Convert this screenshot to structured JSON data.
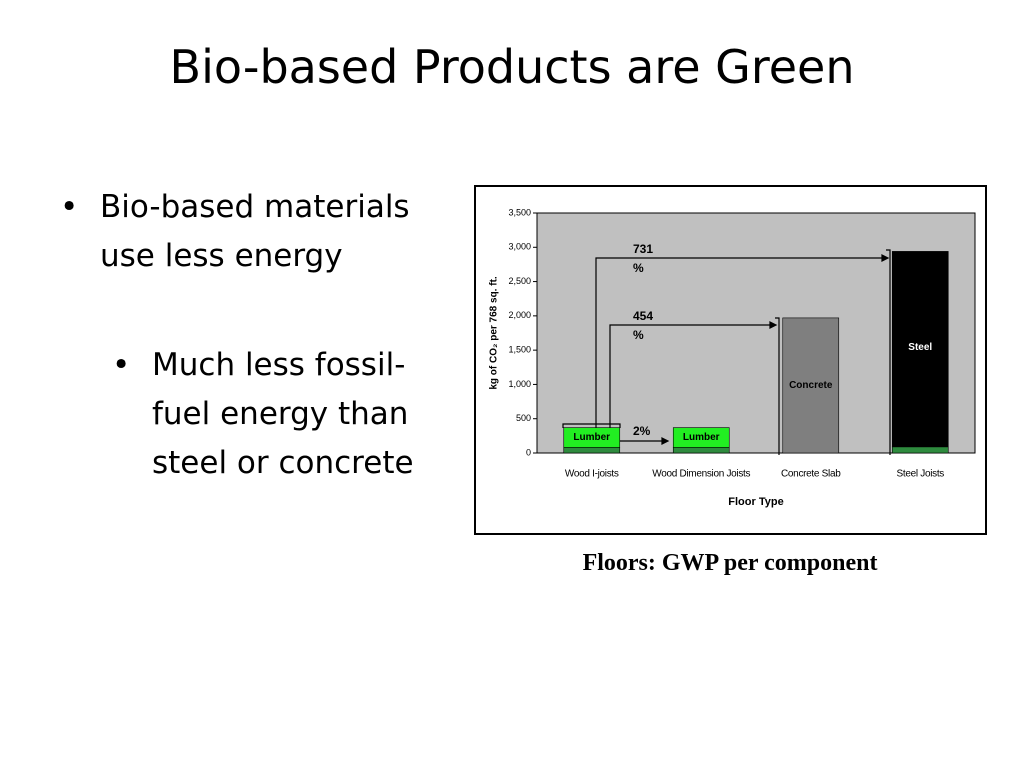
{
  "title": "Bio-based Products are Green",
  "bullets": [
    {
      "text": "Bio-based materials use less energy",
      "level": 1
    },
    {
      "text": "Much less fossil-fuel energy than steel or concrete",
      "level": 2
    }
  ],
  "caption": "Floors: GWP per component",
  "chart_data": {
    "type": "stacked-bar",
    "x_label": "Floor Type",
    "y_label": "kg of CO₂ per 768 sq. ft.",
    "categories": [
      "Wood I-joists",
      "Wood Dimension Joists",
      "Concrete Slab",
      "Steel Joists"
    ],
    "series": [
      {
        "color": "#2e8b3e",
        "values": [
          80,
          80,
          null,
          90
        ]
      },
      {
        "name": "Lumber",
        "color": "#22ee22",
        "values": [
          290,
          290,
          null,
          null
        ]
      },
      {
        "name": "Concrete",
        "color": "#7f7f7f",
        "values": [
          null,
          null,
          1970,
          null
        ]
      },
      {
        "name": "Steel",
        "color": "#000000",
        "values": [
          null,
          null,
          null,
          2850
        ]
      }
    ],
    "ylim": [
      0,
      3500
    ],
    "yticks": [
      0,
      500,
      {
        "value": 1000,
        "label": "1,000"
      },
      {
        "value": 1500,
        "label": "1,500"
      },
      {
        "value": 2000,
        "label": "2,000"
      },
      {
        "value": 2500,
        "label": "2,500"
      },
      {
        "value": 3000,
        "label": "3,000"
      },
      {
        "value": 3500,
        "label": "3,500"
      }
    ],
    "annotations": [
      "731 %",
      "454 %",
      "2%"
    ]
  }
}
